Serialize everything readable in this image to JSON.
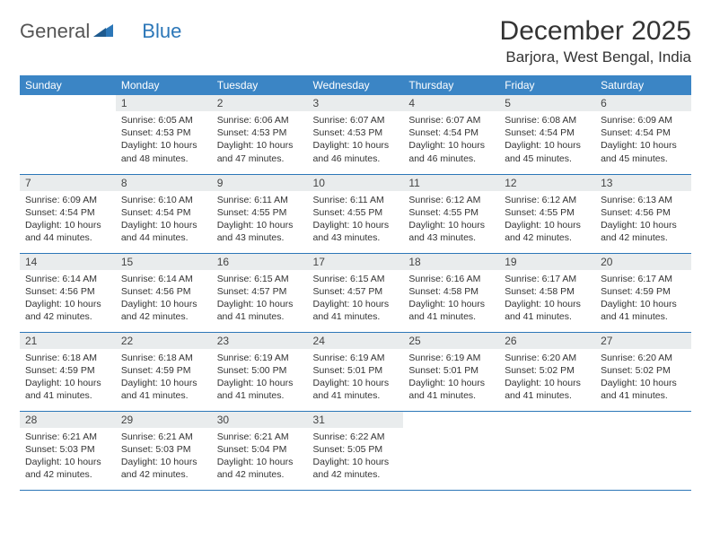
{
  "logo": {
    "part1": "General",
    "part2": "Blue"
  },
  "title": "December 2025",
  "location": "Barjora, West Bengal, India",
  "colors": {
    "header_bg": "#3b85c5",
    "header_text": "#ffffff",
    "daynum_bg": "#e9eced",
    "row_border": "#2c77b8",
    "logo_gray": "#555555",
    "logo_blue": "#2c77b8"
  },
  "dayHeaders": [
    "Sunday",
    "Monday",
    "Tuesday",
    "Wednesday",
    "Thursday",
    "Friday",
    "Saturday"
  ],
  "weeks": [
    [
      {
        "n": "",
        "sunrise": "",
        "sunset": "",
        "daylight": ""
      },
      {
        "n": "1",
        "sunrise": "Sunrise: 6:05 AM",
        "sunset": "Sunset: 4:53 PM",
        "daylight": "Daylight: 10 hours and 48 minutes."
      },
      {
        "n": "2",
        "sunrise": "Sunrise: 6:06 AM",
        "sunset": "Sunset: 4:53 PM",
        "daylight": "Daylight: 10 hours and 47 minutes."
      },
      {
        "n": "3",
        "sunrise": "Sunrise: 6:07 AM",
        "sunset": "Sunset: 4:53 PM",
        "daylight": "Daylight: 10 hours and 46 minutes."
      },
      {
        "n": "4",
        "sunrise": "Sunrise: 6:07 AM",
        "sunset": "Sunset: 4:54 PM",
        "daylight": "Daylight: 10 hours and 46 minutes."
      },
      {
        "n": "5",
        "sunrise": "Sunrise: 6:08 AM",
        "sunset": "Sunset: 4:54 PM",
        "daylight": "Daylight: 10 hours and 45 minutes."
      },
      {
        "n": "6",
        "sunrise": "Sunrise: 6:09 AM",
        "sunset": "Sunset: 4:54 PM",
        "daylight": "Daylight: 10 hours and 45 minutes."
      }
    ],
    [
      {
        "n": "7",
        "sunrise": "Sunrise: 6:09 AM",
        "sunset": "Sunset: 4:54 PM",
        "daylight": "Daylight: 10 hours and 44 minutes."
      },
      {
        "n": "8",
        "sunrise": "Sunrise: 6:10 AM",
        "sunset": "Sunset: 4:54 PM",
        "daylight": "Daylight: 10 hours and 44 minutes."
      },
      {
        "n": "9",
        "sunrise": "Sunrise: 6:11 AM",
        "sunset": "Sunset: 4:55 PM",
        "daylight": "Daylight: 10 hours and 43 minutes."
      },
      {
        "n": "10",
        "sunrise": "Sunrise: 6:11 AM",
        "sunset": "Sunset: 4:55 PM",
        "daylight": "Daylight: 10 hours and 43 minutes."
      },
      {
        "n": "11",
        "sunrise": "Sunrise: 6:12 AM",
        "sunset": "Sunset: 4:55 PM",
        "daylight": "Daylight: 10 hours and 43 minutes."
      },
      {
        "n": "12",
        "sunrise": "Sunrise: 6:12 AM",
        "sunset": "Sunset: 4:55 PM",
        "daylight": "Daylight: 10 hours and 42 minutes."
      },
      {
        "n": "13",
        "sunrise": "Sunrise: 6:13 AM",
        "sunset": "Sunset: 4:56 PM",
        "daylight": "Daylight: 10 hours and 42 minutes."
      }
    ],
    [
      {
        "n": "14",
        "sunrise": "Sunrise: 6:14 AM",
        "sunset": "Sunset: 4:56 PM",
        "daylight": "Daylight: 10 hours and 42 minutes."
      },
      {
        "n": "15",
        "sunrise": "Sunrise: 6:14 AM",
        "sunset": "Sunset: 4:56 PM",
        "daylight": "Daylight: 10 hours and 42 minutes."
      },
      {
        "n": "16",
        "sunrise": "Sunrise: 6:15 AM",
        "sunset": "Sunset: 4:57 PM",
        "daylight": "Daylight: 10 hours and 41 minutes."
      },
      {
        "n": "17",
        "sunrise": "Sunrise: 6:15 AM",
        "sunset": "Sunset: 4:57 PM",
        "daylight": "Daylight: 10 hours and 41 minutes."
      },
      {
        "n": "18",
        "sunrise": "Sunrise: 6:16 AM",
        "sunset": "Sunset: 4:58 PM",
        "daylight": "Daylight: 10 hours and 41 minutes."
      },
      {
        "n": "19",
        "sunrise": "Sunrise: 6:17 AM",
        "sunset": "Sunset: 4:58 PM",
        "daylight": "Daylight: 10 hours and 41 minutes."
      },
      {
        "n": "20",
        "sunrise": "Sunrise: 6:17 AM",
        "sunset": "Sunset: 4:59 PM",
        "daylight": "Daylight: 10 hours and 41 minutes."
      }
    ],
    [
      {
        "n": "21",
        "sunrise": "Sunrise: 6:18 AM",
        "sunset": "Sunset: 4:59 PM",
        "daylight": "Daylight: 10 hours and 41 minutes."
      },
      {
        "n": "22",
        "sunrise": "Sunrise: 6:18 AM",
        "sunset": "Sunset: 4:59 PM",
        "daylight": "Daylight: 10 hours and 41 minutes."
      },
      {
        "n": "23",
        "sunrise": "Sunrise: 6:19 AM",
        "sunset": "Sunset: 5:00 PM",
        "daylight": "Daylight: 10 hours and 41 minutes."
      },
      {
        "n": "24",
        "sunrise": "Sunrise: 6:19 AM",
        "sunset": "Sunset: 5:01 PM",
        "daylight": "Daylight: 10 hours and 41 minutes."
      },
      {
        "n": "25",
        "sunrise": "Sunrise: 6:19 AM",
        "sunset": "Sunset: 5:01 PM",
        "daylight": "Daylight: 10 hours and 41 minutes."
      },
      {
        "n": "26",
        "sunrise": "Sunrise: 6:20 AM",
        "sunset": "Sunset: 5:02 PM",
        "daylight": "Daylight: 10 hours and 41 minutes."
      },
      {
        "n": "27",
        "sunrise": "Sunrise: 6:20 AM",
        "sunset": "Sunset: 5:02 PM",
        "daylight": "Daylight: 10 hours and 41 minutes."
      }
    ],
    [
      {
        "n": "28",
        "sunrise": "Sunrise: 6:21 AM",
        "sunset": "Sunset: 5:03 PM",
        "daylight": "Daylight: 10 hours and 42 minutes."
      },
      {
        "n": "29",
        "sunrise": "Sunrise: 6:21 AM",
        "sunset": "Sunset: 5:03 PM",
        "daylight": "Daylight: 10 hours and 42 minutes."
      },
      {
        "n": "30",
        "sunrise": "Sunrise: 6:21 AM",
        "sunset": "Sunset: 5:04 PM",
        "daylight": "Daylight: 10 hours and 42 minutes."
      },
      {
        "n": "31",
        "sunrise": "Sunrise: 6:22 AM",
        "sunset": "Sunset: 5:05 PM",
        "daylight": "Daylight: 10 hours and 42 minutes."
      },
      {
        "n": "",
        "sunrise": "",
        "sunset": "",
        "daylight": ""
      },
      {
        "n": "",
        "sunrise": "",
        "sunset": "",
        "daylight": ""
      },
      {
        "n": "",
        "sunrise": "",
        "sunset": "",
        "daylight": ""
      }
    ]
  ]
}
